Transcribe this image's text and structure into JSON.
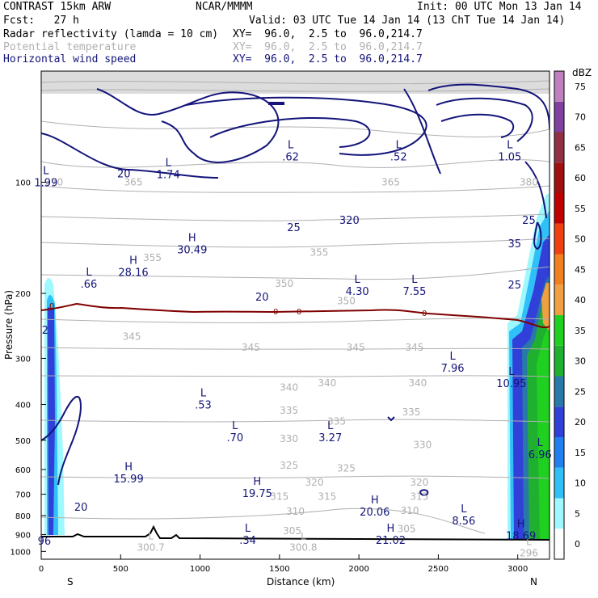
{
  "header": {
    "model": "CONTRAST 15km ARW",
    "org": "NCAR/MMMM",
    "init": "Init: 00 UTC Mon 13 Jan 14",
    "fcst": "Fcst:   27 h",
    "valid": "Valid: 03 UTC Tue 14 Jan 14 (13 ChT Tue 14 Jan 14)",
    "fields": [
      {
        "name": "Radar reflectivity (lamda = 10 cm)",
        "xy": "XY=  96.0,  2.5 to  96.0,214.7",
        "color": "#000000"
      },
      {
        "name": "Potential temperature",
        "xy": "XY=  96.0,  2.5 to  96.0,214.7",
        "color": "#b0b0b0"
      },
      {
        "name": "Horizontal wind speed",
        "xy": "XY=  96.0,  2.5 to  96.0,214.7",
        "color": "#14147a"
      }
    ]
  },
  "chart_data": {
    "type": "contour",
    "xlabel": "Distance (km)",
    "ylabel": "Pressure (hPa)",
    "xlim": [
      0,
      3200
    ],
    "ylim": [
      1050,
      50
    ],
    "y_scale": "log",
    "x_ticks": [
      0,
      500,
      1000,
      1500,
      2000,
      2500,
      3000
    ],
    "y_ticks": [
      100,
      200,
      300,
      400,
      500,
      600,
      700,
      800,
      900,
      1000
    ],
    "x_end_labels": {
      "left": "S",
      "right": "N"
    },
    "colorbar": {
      "unit": "dBZ",
      "levels": [
        0,
        5,
        10,
        15,
        20,
        25,
        30,
        35,
        40,
        45,
        50,
        55,
        60,
        65,
        70,
        75
      ],
      "colors": [
        "#ffffff",
        "#a0f8ff",
        "#30c0f8",
        "#2080f0",
        "#3040d8",
        "#2878a8",
        "#20b030",
        "#20d020",
        "#f0a040",
        "#f08020",
        "#f04010",
        "#c00000",
        "#a01010",
        "#903040",
        "#8040a0",
        "#c080c0"
      ]
    },
    "theta_labels": [
      {
        "text": "370",
        "x": 80,
        "p": 100
      },
      {
        "text": "365",
        "x": 580,
        "p": 100
      },
      {
        "text": "365",
        "x": 2200,
        "p": 100
      },
      {
        "text": "380",
        "x": 3070,
        "p": 100
      },
      {
        "text": "355",
        "x": 700,
        "p": 160
      },
      {
        "text": "355",
        "x": 1750,
        "p": 155
      },
      {
        "text": "350",
        "x": 1530,
        "p": 188
      },
      {
        "text": "350",
        "x": 1920,
        "p": 210
      },
      {
        "text": "345",
        "x": 570,
        "p": 262
      },
      {
        "text": "345",
        "x": 1320,
        "p": 280
      },
      {
        "text": "345",
        "x": 1980,
        "p": 280
      },
      {
        "text": "345",
        "x": 2350,
        "p": 280
      },
      {
        "text": "340",
        "x": 1560,
        "p": 360
      },
      {
        "text": "340",
        "x": 1800,
        "p": 350
      },
      {
        "text": "340",
        "x": 2370,
        "p": 350
      },
      {
        "text": "335",
        "x": 1560,
        "p": 415
      },
      {
        "text": "335",
        "x": 1860,
        "p": 445
      },
      {
        "text": "335",
        "x": 2330,
        "p": 420
      },
      {
        "text": "330",
        "x": 1560,
        "p": 495
      },
      {
        "text": "330",
        "x": 2400,
        "p": 515
      },
      {
        "text": "325",
        "x": 1560,
        "p": 585
      },
      {
        "text": "325",
        "x": 1920,
        "p": 595
      },
      {
        "text": "320",
        "x": 1720,
        "p": 650
      },
      {
        "text": "320",
        "x": 2380,
        "p": 650
      },
      {
        "text": "315",
        "x": 1500,
        "p": 710
      },
      {
        "text": "315",
        "x": 1800,
        "p": 710
      },
      {
        "text": "315",
        "x": 2380,
        "p": 710
      },
      {
        "text": "310",
        "x": 1600,
        "p": 780
      },
      {
        "text": "310",
        "x": 2320,
        "p": 775
      },
      {
        "text": "305",
        "x": 1580,
        "p": 880
      },
      {
        "text": "305",
        "x": 2300,
        "p": 870
      }
    ],
    "theta_extremes": [
      {
        "mark": "L",
        "value": "300.7",
        "x": 690,
        "p": 975
      },
      {
        "mark": "L",
        "value": "300.8",
        "x": 1650,
        "p": 975
      },
      {
        "mark": "L",
        "value": "296",
        "x": 3070,
        "p": 1010
      }
    ],
    "wind_labels": [
      {
        "text": "20",
        "x": 520,
        "p": 95
      },
      {
        "text": "25",
        "x": 1590,
        "p": 133
      },
      {
        "text": "20",
        "x": 1390,
        "p": 205
      },
      {
        "text": "320",
        "x": 1940,
        "p": 127
      },
      {
        "text": "25",
        "x": 3070,
        "p": 127
      },
      {
        "text": "35",
        "x": 2980,
        "p": 147
      },
      {
        "text": "25",
        "x": 2980,
        "p": 190
      },
      {
        "text": "20",
        "x": 250,
        "p": 760
      },
      {
        "text": "2",
        "x": 25,
        "p": 252
      }
    ],
    "wind_extremes": [
      {
        "mark": "L",
        "value": "1.99",
        "x": 30,
        "p": 100
      },
      {
        "mark": "L",
        "value": "1.74",
        "x": 800,
        "p": 95
      },
      {
        "mark": "L",
        "value": ".62",
        "x": 1570,
        "p": 85
      },
      {
        "mark": "L",
        "value": ".52",
        "x": 2250,
        "p": 85
      },
      {
        "mark": "L",
        "value": "1.05",
        "x": 2950,
        "p": 85
      },
      {
        "mark": "H",
        "value": "28.16",
        "x": 580,
        "p": 175
      },
      {
        "mark": "H",
        "value": "30.49",
        "x": 950,
        "p": 152
      },
      {
        "mark": "L",
        "value": ".66",
        "x": 300,
        "p": 188
      },
      {
        "mark": "L",
        "value": "4.30",
        "x": 1990,
        "p": 197
      },
      {
        "mark": "L",
        "value": "7.55",
        "x": 2350,
        "p": 197
      },
      {
        "mark": "L",
        "value": "7.96",
        "x": 2590,
        "p": 318
      },
      {
        "mark": "L",
        "value": "10.95",
        "x": 2960,
        "p": 350
      },
      {
        "mark": "L",
        "value": ".53",
        "x": 1020,
        "p": 400
      },
      {
        "mark": "L",
        "value": ".70",
        "x": 1220,
        "p": 490
      },
      {
        "mark": "L",
        "value": "3.27",
        "x": 1820,
        "p": 490
      },
      {
        "mark": "L",
        "value": "6.96",
        "x": 3140,
        "p": 545
      },
      {
        "mark": "H",
        "value": "15.99",
        "x": 550,
        "p": 635
      },
      {
        "mark": "H",
        "value": "19.75",
        "x": 1360,
        "p": 695
      },
      {
        "mark": "H",
        "value": "20.06",
        "x": 2100,
        "p": 780
      },
      {
        "mark": "L",
        "value": "8.56",
        "x": 2660,
        "p": 825
      },
      {
        "mark": "H",
        "value": "18.69",
        "x": 3020,
        "p": 905
      },
      {
        "mark": "L",
        "value": ".34",
        "x": 1300,
        "p": 930
      },
      {
        "mark": "H",
        "value": "21.02",
        "x": 2200,
        "p": 930
      },
      {
        "mark": "",
        "value": "96",
        "x": 20,
        "p": 935
      }
    ],
    "zero_isotherm_labels": [
      "0",
      "0",
      "0",
      "0"
    ]
  }
}
